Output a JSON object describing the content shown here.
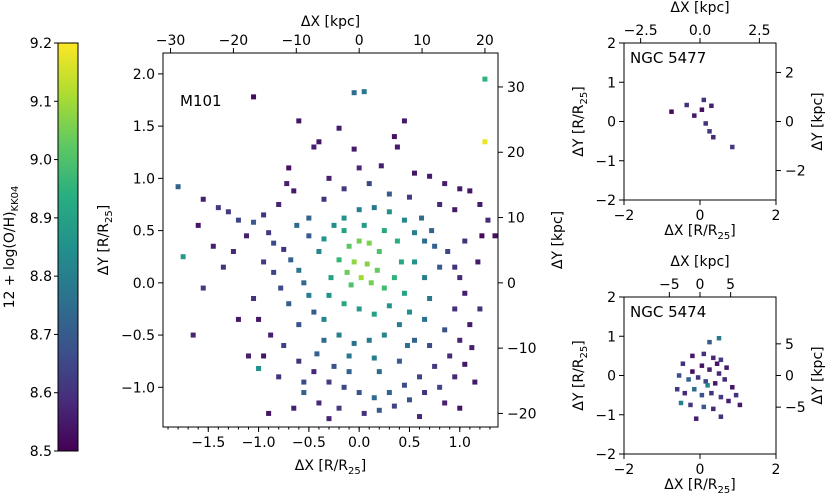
{
  "colorbar": {
    "label": "12 + log(O/H)",
    "label_sub": "KK04",
    "vmin": 8.5,
    "vmax": 9.2,
    "ticks": [
      "8.5",
      "8.6",
      "8.7",
      "8.8",
      "8.9",
      "9.0",
      "9.1",
      "9.2"
    ],
    "tick_values": [
      8.5,
      8.6,
      8.7,
      8.8,
      8.9,
      9.0,
      9.1,
      9.2
    ],
    "colormap": [
      "#440154",
      "#472d7b",
      "#3b528b",
      "#2c728e",
      "#21918c",
      "#28ae80",
      "#5ec962",
      "#addc30",
      "#fde725"
    ]
  },
  "chart_data": [
    {
      "type": "scatter",
      "title": "M101",
      "xlabel": "ΔX [R/R",
      "xlabel_sub": "25",
      "ylabel": "ΔY [R/R",
      "ylabel_sub": "25",
      "top_xlabel": "ΔX [kpc]",
      "right_ylabel": "ΔY [kpc]",
      "xlim": [
        -1.95,
        1.38
      ],
      "ylim": [
        -1.38,
        2.2
      ],
      "xticks": [
        -1.5,
        -1.0,
        -0.5,
        0.0,
        0.5,
        1.0
      ],
      "xtick_labels": [
        "−1.5",
        "−1.0",
        "−0.5",
        "0.0",
        "0.5",
        "1.0"
      ],
      "yticks": [
        -1.0,
        -0.5,
        0.0,
        0.5,
        1.0,
        1.5,
        2.0
      ],
      "ytick_labels": [
        "−1.0",
        "−0.5",
        "0.0",
        "0.5",
        "1.0",
        "1.5",
        "2.0"
      ],
      "kpc_per_unit": 16.0,
      "top_ticks": [
        -30,
        -20,
        -10,
        0,
        10,
        20
      ],
      "top_tick_labels": [
        "−30",
        "−20",
        "−10",
        "0",
        "10",
        "20"
      ],
      "right_ticks": [
        -20,
        -10,
        0,
        10,
        20,
        30
      ],
      "right_tick_labels": [
        "−20",
        "−10",
        "0",
        "10",
        "20",
        "30"
      ],
      "points": [
        [
          1.25,
          1.95,
          8.95
        ],
        [
          1.25,
          1.35,
          9.18
        ],
        [
          -0.05,
          1.82,
          8.75
        ],
        [
          0.05,
          1.83,
          8.78
        ],
        [
          -1.05,
          1.78,
          8.52
        ],
        [
          -0.6,
          1.55,
          8.54
        ],
        [
          -0.2,
          1.48,
          8.55
        ],
        [
          0.45,
          1.55,
          8.55
        ],
        [
          -0.4,
          1.35,
          8.54
        ],
        [
          0.35,
          1.4,
          8.53
        ],
        [
          0.38,
          1.3,
          8.55
        ],
        [
          -0.45,
          1.3,
          8.56
        ],
        [
          -0.7,
          1.1,
          8.53
        ],
        [
          -0.72,
          0.95,
          8.56
        ],
        [
          -0.65,
          0.88,
          8.55
        ],
        [
          0.55,
          1.05,
          8.54
        ],
        [
          0.7,
          1.02,
          8.55
        ],
        [
          0.85,
          0.95,
          8.56
        ],
        [
          1.0,
          0.9,
          8.55
        ],
        [
          1.1,
          0.88,
          8.54
        ],
        [
          1.2,
          0.75,
          8.55
        ],
        [
          1.28,
          0.6,
          8.58
        ],
        [
          1.22,
          0.45,
          8.52
        ],
        [
          1.35,
          0.45,
          8.53
        ],
        [
          -1.8,
          0.92,
          8.72
        ],
        [
          -1.55,
          0.8,
          8.56
        ],
        [
          -1.4,
          0.72,
          8.62
        ],
        [
          -1.2,
          0.6,
          8.65
        ],
        [
          -1.05,
          0.58,
          8.7
        ],
        [
          -0.9,
          0.48,
          8.62
        ],
        [
          -0.85,
          0.38,
          8.66
        ],
        [
          -0.75,
          0.32,
          8.6
        ],
        [
          -0.68,
          0.22,
          8.72
        ],
        [
          -0.6,
          0.12,
          8.78
        ],
        [
          -0.55,
          0.0,
          8.74
        ],
        [
          -0.5,
          -0.12,
          8.8
        ],
        [
          -0.45,
          -0.28,
          8.7
        ],
        [
          -0.35,
          -0.35,
          8.82
        ],
        [
          -0.25,
          0.55,
          8.84
        ],
        [
          -0.15,
          0.62,
          8.86
        ],
        [
          0.0,
          0.7,
          8.8
        ],
        [
          0.15,
          0.72,
          8.78
        ],
        [
          0.3,
          0.68,
          8.85
        ],
        [
          0.45,
          0.6,
          8.82
        ],
        [
          0.55,
          0.48,
          8.8
        ],
        [
          0.65,
          0.4,
          8.75
        ],
        [
          0.75,
          0.35,
          8.72
        ],
        [
          0.88,
          0.3,
          8.65
        ],
        [
          0.95,
          0.15,
          8.6
        ],
        [
          1.0,
          0.05,
          8.58
        ],
        [
          1.05,
          -0.1,
          8.56
        ],
        [
          0.95,
          -0.25,
          8.6
        ],
        [
          1.1,
          -0.4,
          8.55
        ],
        [
          1.0,
          -0.55,
          8.57
        ],
        [
          0.9,
          -0.7,
          8.59
        ],
        [
          0.75,
          -0.8,
          8.62
        ],
        [
          0.6,
          -0.9,
          8.64
        ],
        [
          0.45,
          -0.98,
          8.66
        ],
        [
          0.3,
          -1.05,
          8.72
        ],
        [
          0.15,
          -1.1,
          8.75
        ],
        [
          0.0,
          -1.05,
          8.68
        ],
        [
          -0.15,
          -1.0,
          8.65
        ],
        [
          -0.3,
          -0.95,
          8.62
        ],
        [
          -0.45,
          -0.85,
          8.58
        ],
        [
          -0.6,
          -0.75,
          8.6
        ],
        [
          -0.75,
          -0.6,
          8.63
        ],
        [
          -0.88,
          -0.5,
          8.56
        ],
        [
          -1.0,
          -0.35,
          8.54
        ],
        [
          -0.1,
          0.35,
          9.02
        ],
        [
          0.0,
          0.4,
          9.05
        ],
        [
          0.1,
          0.38,
          9.06
        ],
        [
          0.2,
          0.3,
          9.0
        ],
        [
          -0.05,
          0.2,
          9.08
        ],
        [
          0.08,
          0.18,
          9.07
        ],
        [
          0.18,
          0.12,
          9.03
        ],
        [
          -0.12,
          0.1,
          9.04
        ],
        [
          0.02,
          0.05,
          9.1
        ],
        [
          0.12,
          0.0,
          9.05
        ],
        [
          -0.08,
          -0.02,
          9.0
        ],
        [
          0.25,
          -0.05,
          8.98
        ],
        [
          0.35,
          0.05,
          8.95
        ],
        [
          0.42,
          0.2,
          8.92
        ],
        [
          -0.2,
          0.22,
          8.96
        ],
        [
          -0.28,
          0.05,
          8.9
        ],
        [
          -0.3,
          -0.12,
          8.85
        ],
        [
          -0.15,
          -0.2,
          8.92
        ],
        [
          0.0,
          -0.25,
          8.88
        ],
        [
          0.15,
          -0.3,
          8.9
        ],
        [
          0.3,
          -0.22,
          8.86
        ],
        [
          0.45,
          -0.1,
          8.9
        ],
        [
          0.5,
          -0.28,
          8.84
        ],
        [
          0.4,
          -0.4,
          8.8
        ],
        [
          0.25,
          -0.5,
          8.82
        ],
        [
          0.1,
          -0.55,
          8.78
        ],
        [
          -0.05,
          -0.58,
          8.76
        ],
        [
          -0.2,
          -0.5,
          8.8
        ],
        [
          -0.35,
          -0.55,
          8.74
        ],
        [
          0.55,
          -0.55,
          8.72
        ],
        [
          0.65,
          -0.35,
          8.76
        ],
        [
          0.7,
          -0.15,
          8.78
        ],
        [
          0.65,
          0.05,
          8.8
        ],
        [
          0.55,
          0.2,
          8.86
        ],
        [
          -0.4,
          0.3,
          8.82
        ],
        [
          -0.5,
          0.45,
          8.7
        ],
        [
          -1.25,
          0.3,
          8.58
        ],
        [
          -1.35,
          0.15,
          8.6
        ],
        [
          -1.75,
          0.25,
          8.88
        ],
        [
          -1.55,
          -0.05,
          8.62
        ],
        [
          -1.65,
          -0.5,
          8.57
        ],
        [
          -1.2,
          -0.35,
          8.55
        ],
        [
          -1.05,
          -0.15,
          8.6
        ],
        [
          -0.95,
          -0.7,
          8.54
        ],
        [
          -1.1,
          -0.7,
          8.56
        ],
        [
          -1.0,
          -0.82,
          8.85
        ],
        [
          -0.9,
          -1.25,
          8.54
        ],
        [
          -0.65,
          -1.2,
          8.56
        ],
        [
          -0.55,
          -0.95,
          8.66
        ],
        [
          -0.4,
          -1.15,
          8.58
        ],
        [
          -0.2,
          -1.2,
          8.62
        ],
        [
          0.05,
          -1.25,
          8.6
        ],
        [
          0.2,
          -1.22,
          8.7
        ],
        [
          0.35,
          -1.18,
          8.64
        ],
        [
          0.5,
          -1.12,
          8.68
        ],
        [
          0.65,
          -1.05,
          8.6
        ],
        [
          0.8,
          -1.0,
          8.65
        ],
        [
          0.95,
          -0.9,
          8.58
        ],
        [
          1.05,
          -0.78,
          8.54
        ],
        [
          1.12,
          -0.62,
          8.56
        ],
        [
          1.2,
          -0.25,
          8.6
        ],
        [
          1.18,
          0.2,
          8.55
        ],
        [
          -0.8,
          0.75,
          8.57
        ],
        [
          -0.95,
          0.65,
          8.6
        ],
        [
          -1.12,
          0.45,
          8.56
        ],
        [
          -0.35,
          0.8,
          8.6
        ],
        [
          -0.15,
          0.9,
          8.62
        ],
        [
          0.1,
          0.95,
          8.65
        ],
        [
          0.3,
          0.85,
          8.7
        ],
        [
          0.5,
          0.82,
          8.62
        ],
        [
          0.8,
          0.75,
          8.58
        ],
        [
          0.95,
          0.7,
          8.55
        ],
        [
          -0.25,
          -0.8,
          8.68
        ],
        [
          -0.1,
          -0.85,
          8.72
        ],
        [
          0.2,
          -0.85,
          8.74
        ],
        [
          0.4,
          -0.75,
          8.7
        ],
        [
          0.7,
          -0.6,
          8.66
        ],
        [
          -0.6,
          -0.4,
          8.68
        ],
        [
          -0.7,
          -0.2,
          8.7
        ],
        [
          -0.62,
          0.55,
          8.74
        ],
        [
          -0.5,
          0.62,
          8.72
        ],
        [
          0.62,
          0.62,
          8.74
        ],
        [
          0.72,
          0.5,
          8.72
        ],
        [
          1.05,
          0.4,
          8.6
        ],
        [
          -1.6,
          0.55,
          8.54
        ],
        [
          -1.45,
          0.35,
          8.56
        ],
        [
          -1.3,
          0.68,
          8.62
        ],
        [
          -0.85,
          0.1,
          8.64
        ],
        [
          -0.78,
          -0.05,
          8.66
        ],
        [
          -0.3,
          1.0,
          8.56
        ],
        [
          0.0,
          1.1,
          8.58
        ],
        [
          -0.05,
          1.28,
          8.55
        ],
        [
          0.22,
          1.12,
          8.56
        ],
        [
          -0.55,
          -1.05,
          8.72
        ],
        [
          -0.8,
          -0.9,
          8.6
        ],
        [
          0.85,
          -1.15,
          8.56
        ],
        [
          1.0,
          -1.2,
          8.54
        ],
        [
          0.6,
          -1.28,
          8.58
        ],
        [
          -0.3,
          -1.3,
          8.57
        ],
        [
          -0.15,
          0.5,
          8.9
        ],
        [
          0.05,
          0.55,
          8.88
        ],
        [
          0.25,
          0.5,
          8.92
        ],
        [
          0.38,
          0.4,
          8.94
        ],
        [
          -0.35,
          0.42,
          8.86
        ],
        [
          0.48,
          -0.6,
          8.76
        ],
        [
          0.15,
          -0.72,
          8.8
        ],
        [
          -0.1,
          -0.7,
          8.78
        ],
        [
          -0.42,
          -0.68,
          8.72
        ],
        [
          0.85,
          -0.45,
          8.68
        ],
        [
          0.8,
          0.15,
          8.7
        ],
        [
          -0.95,
          0.2,
          8.62
        ],
        [
          1.15,
          -0.95,
          8.55
        ]
      ]
    },
    {
      "type": "scatter",
      "title": "NGC 5477",
      "xlabel": "ΔX [R/R",
      "xlabel_sub": "25",
      "ylabel": "ΔY [R/R",
      "ylabel_sub": "25",
      "top_xlabel": "ΔX [kpc]",
      "right_ylabel": "ΔY [kpc]",
      "xlim": [
        -2,
        2
      ],
      "ylim": [
        -2,
        2
      ],
      "xticks": [
        -2,
        0,
        2
      ],
      "xtick_labels": [
        "−2",
        "0",
        "2"
      ],
      "yticks": [
        -2,
        -1,
        0,
        1,
        2
      ],
      "ytick_labels": [
        "−2",
        "−1",
        "0",
        "1",
        "2"
      ],
      "kpc_per_unit": 1.6,
      "top_ticks": [
        -2.5,
        0.0,
        2.5
      ],
      "top_tick_labels": [
        "−2.5",
        "0.0",
        "2.5"
      ],
      "right_ticks": [
        -2,
        0,
        2
      ],
      "right_tick_labels": [
        "−2",
        "0",
        "2"
      ],
      "points": [
        [
          -0.75,
          0.25,
          8.52
        ],
        [
          -0.35,
          0.42,
          8.6
        ],
        [
          -0.15,
          0.15,
          8.55
        ],
        [
          0.05,
          0.3,
          8.53
        ],
        [
          0.1,
          0.55,
          8.6
        ],
        [
          0.3,
          0.4,
          8.56
        ],
        [
          0.15,
          -0.05,
          8.6
        ],
        [
          0.25,
          -0.25,
          8.62
        ],
        [
          0.35,
          -0.4,
          8.58
        ],
        [
          0.85,
          -0.65,
          8.62
        ]
      ]
    },
    {
      "type": "scatter",
      "title": "NGC 5474",
      "xlabel": "ΔX [R/R",
      "xlabel_sub": "25",
      "ylabel": "ΔY [R/R",
      "ylabel_sub": "25",
      "top_xlabel": "ΔX [kpc]",
      "right_ylabel": "ΔY [kpc]",
      "xlim": [
        -2,
        2
      ],
      "ylim": [
        -2,
        2
      ],
      "xticks": [
        -2,
        0,
        2
      ],
      "xtick_labels": [
        "−2",
        "0",
        "2"
      ],
      "yticks": [
        -2,
        -1,
        0,
        1,
        2
      ],
      "ytick_labels": [
        "−2",
        "−1",
        "0",
        "1",
        "2"
      ],
      "kpc_per_unit": 6.2,
      "top_ticks": [
        -5,
        0,
        5
      ],
      "top_tick_labels": [
        "−5",
        "0",
        "5"
      ],
      "right_ticks": [
        -5,
        0,
        5
      ],
      "right_tick_labels": [
        "−5",
        "0",
        "5"
      ],
      "points": [
        [
          0.25,
          0.85,
          8.7
        ],
        [
          0.5,
          0.95,
          8.78
        ],
        [
          -0.2,
          0.5,
          8.55
        ],
        [
          0.1,
          0.55,
          8.6
        ],
        [
          0.35,
          0.45,
          8.58
        ],
        [
          0.55,
          0.4,
          8.62
        ],
        [
          -0.45,
          0.3,
          8.6
        ],
        [
          0.05,
          0.25,
          8.54
        ],
        [
          0.25,
          0.15,
          8.56
        ],
        [
          0.5,
          0.05,
          8.58
        ],
        [
          0.7,
          0.2,
          8.55
        ],
        [
          -0.55,
          0.0,
          8.66
        ],
        [
          -0.3,
          -0.1,
          8.72
        ],
        [
          -0.05,
          -0.05,
          8.6
        ],
        [
          0.15,
          -0.15,
          8.64
        ],
        [
          0.4,
          -0.2,
          8.55
        ],
        [
          0.65,
          -0.1,
          8.58
        ],
        [
          0.85,
          -0.3,
          8.54
        ],
        [
          -0.6,
          -0.35,
          8.62
        ],
        [
          -0.4,
          -0.45,
          8.58
        ],
        [
          -0.15,
          -0.35,
          8.75
        ],
        [
          0.05,
          -0.5,
          8.68
        ],
        [
          0.3,
          -0.45,
          8.6
        ],
        [
          0.55,
          -0.55,
          8.62
        ],
        [
          0.75,
          -0.65,
          8.56
        ],
        [
          1.05,
          -0.75,
          8.55
        ],
        [
          -0.5,
          -0.7,
          8.8
        ],
        [
          -0.25,
          -0.75,
          8.62
        ],
        [
          0.1,
          -0.8,
          8.7
        ],
        [
          0.35,
          -0.85,
          8.58
        ],
        [
          0.55,
          -1.05,
          8.6
        ],
        [
          -0.1,
          -1.1,
          8.56
        ],
        [
          0.2,
          -0.25,
          8.82
        ],
        [
          -0.2,
          0.1,
          8.52
        ],
        [
          0.45,
          0.3,
          8.54
        ],
        [
          0.95,
          -0.5,
          8.6
        ]
      ]
    }
  ]
}
